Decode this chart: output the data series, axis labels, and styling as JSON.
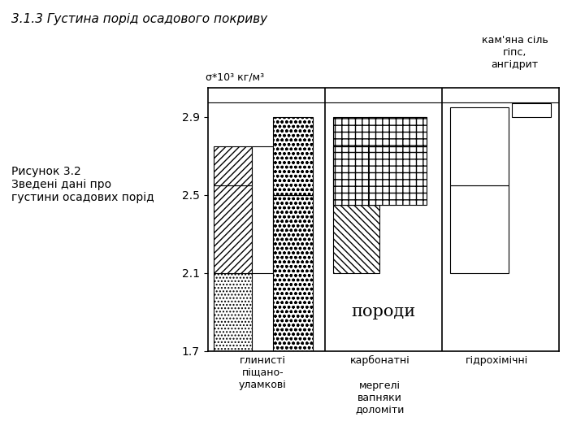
{
  "title": "3.1.3 Густина порід осадового покриву",
  "ylabel": "σ*10³ кг/м³",
  "figure_label": "Рисунок 3.2\nЗведені дані про\nгустини осадових порід",
  "top_right_label": "кам'яна сіль\nгіпс,\nангідрит",
  "center_label": "породи",
  "col1_label": "глинисті\nпіщано-\nуламкові",
  "col2_label": "карбонатні",
  "col2_sublabel": "мергелі\nвапняки\nдоломіти",
  "col3_label": "гідрохімічні",
  "yticks": [
    1.7,
    2.1,
    2.5,
    2.9
  ],
  "ymin": 1.7,
  "ymax": 3.05,
  "bg_color": "#ffffff"
}
